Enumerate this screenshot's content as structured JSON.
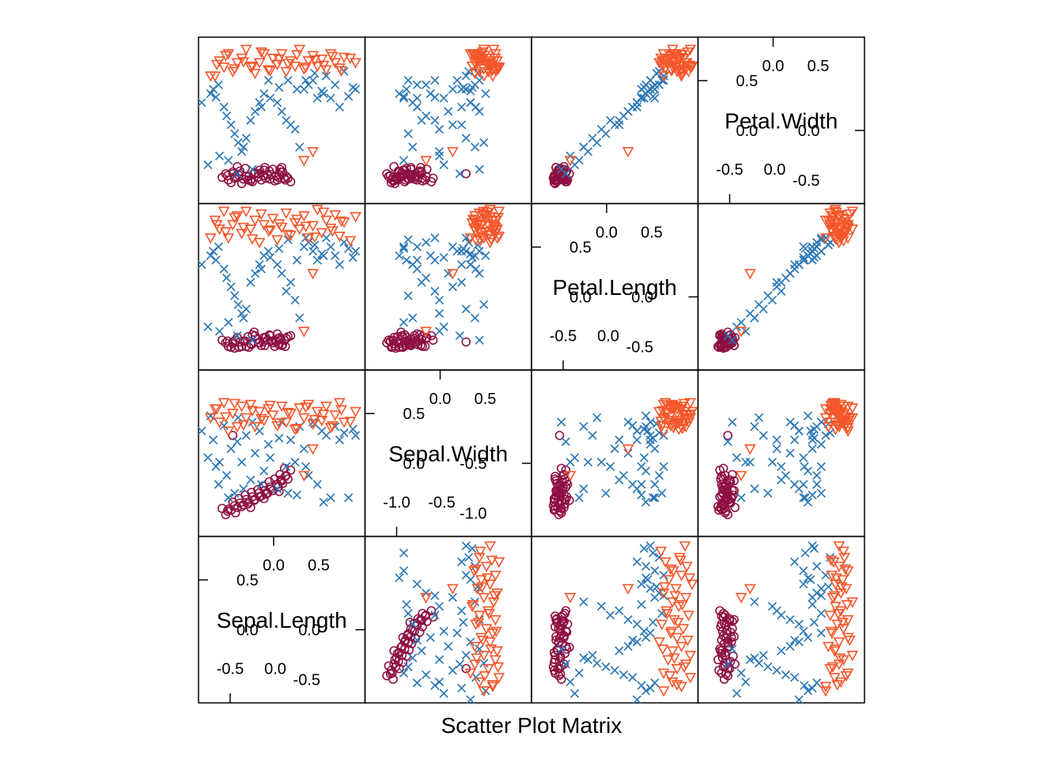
{
  "chart_data": {
    "type": "scatter",
    "title": "",
    "xlabel": "Scatter Plot Matrix",
    "ylabel": "",
    "variables": [
      "Sepal.Length",
      "Sepal.Width",
      "Petal.Length",
      "Petal.Width"
    ],
    "legend": "none",
    "grid": false,
    "panel_range": [
      -0.85,
      0.95
    ],
    "diagonal_ticks": {
      "Sepal.Length": {
        "top": [
          "0.0",
          "0.5"
        ],
        "left": [
          "0.5",
          "0.0"
        ],
        "bottom": [
          "-0.5",
          "0.0"
        ],
        "right": [
          "0.0",
          "-0.5"
        ]
      },
      "Sepal.Width": {
        "top": [
          "0.0",
          "0.5"
        ],
        "left": [
          "0.5",
          "0.0"
        ],
        "bottom": [
          "-1.0",
          "-0.5"
        ],
        "right": [
          "-0.5",
          "-1.0"
        ]
      },
      "Petal.Length": {
        "top": [
          "0.0",
          "0.5"
        ],
        "left": [
          "0.5",
          "0.0"
        ],
        "bottom": [
          "-0.5",
          "0.0"
        ],
        "right": [
          "0.0",
          "-0.5"
        ]
      },
      "Petal.Width": {
        "top": [
          "0.0",
          "0.5"
        ],
        "left": [
          "0.5",
          "0.0"
        ],
        "bottom": [
          "-0.5",
          "0.0"
        ],
        "right": [
          "0.0",
          "-0.5"
        ]
      }
    },
    "series": [
      {
        "marker": "circle",
        "color": "#8E0F42",
        "points": [
          [
            -0.55,
            -0.58,
            -0.62,
            -0.62
          ],
          [
            -0.47,
            -0.62,
            -0.55,
            -0.58
          ],
          [
            -0.4,
            -0.55,
            -0.62,
            -0.66
          ],
          [
            -0.33,
            -0.52,
            -0.51,
            -0.62
          ],
          [
            -0.26,
            -0.48,
            -0.46,
            -0.55
          ],
          [
            -0.2,
            -0.44,
            -0.58,
            -0.51
          ],
          [
            -0.13,
            -0.41,
            -0.52,
            -0.6
          ],
          [
            -0.07,
            -0.35,
            -0.56,
            -0.56
          ],
          [
            0.0,
            -0.3,
            -0.48,
            -0.62
          ],
          [
            0.05,
            -0.26,
            -0.61,
            -0.48
          ],
          [
            0.1,
            -0.2,
            -0.53,
            -0.58
          ],
          [
            0.15,
            -0.14,
            -0.5,
            -0.64
          ],
          [
            -0.5,
            -0.5,
            -0.59,
            -0.53
          ],
          [
            -0.43,
            -0.46,
            -0.63,
            -0.57
          ],
          [
            -0.36,
            -0.42,
            -0.56,
            -0.49
          ],
          [
            -0.29,
            -0.39,
            -0.6,
            -0.61
          ],
          [
            -0.22,
            -0.36,
            -0.54,
            -0.59
          ],
          [
            -0.16,
            -0.32,
            -0.57,
            -0.57
          ],
          [
            -0.09,
            -0.27,
            -0.49,
            -0.52
          ],
          [
            -0.03,
            -0.24,
            -0.62,
            -0.63
          ],
          [
            0.03,
            -0.19,
            -0.52,
            -0.5
          ],
          [
            0.08,
            -0.12,
            -0.55,
            -0.6
          ],
          [
            -0.58,
            -0.64,
            -0.58,
            -0.55
          ],
          [
            -0.52,
            -0.59,
            -0.63,
            -0.65
          ],
          [
            -0.45,
            -0.56,
            -0.52,
            -0.47
          ],
          [
            -0.38,
            -0.53,
            -0.56,
            -0.61
          ],
          [
            -0.32,
            -0.5,
            -0.63,
            -0.58
          ],
          [
            -0.25,
            -0.47,
            -0.5,
            -0.54
          ],
          [
            -0.18,
            -0.43,
            -0.61,
            -0.62
          ],
          [
            -0.11,
            -0.4,
            -0.55,
            -0.56
          ],
          [
            -0.05,
            -0.37,
            -0.58,
            -0.5
          ],
          [
            0.01,
            -0.33,
            -0.53,
            -0.59
          ],
          [
            0.06,
            -0.29,
            -0.6,
            -0.53
          ],
          [
            0.12,
            -0.24,
            -0.51,
            -0.6
          ],
          [
            -0.48,
            -0.54,
            -0.64,
            -0.6
          ],
          [
            -0.42,
            -0.51,
            -0.57,
            -0.52
          ],
          [
            -0.35,
            -0.47,
            -0.62,
            -0.58
          ],
          [
            -0.28,
            -0.44,
            -0.49,
            -0.64
          ],
          [
            -0.21,
            -0.4,
            -0.58,
            -0.55
          ],
          [
            -0.14,
            -0.37,
            -0.61,
            -0.48
          ],
          [
            -0.08,
            -0.33,
            -0.5,
            -0.61
          ],
          [
            -0.01,
            -0.3,
            -0.57,
            -0.57
          ],
          [
            0.04,
            -0.25,
            -0.54,
            -0.53
          ],
          [
            0.09,
            -0.21,
            -0.62,
            -0.62
          ],
          [
            -0.56,
            -0.6,
            -0.56,
            -0.57
          ],
          [
            -0.3,
            -0.56,
            -0.59,
            -0.63
          ],
          [
            -0.15,
            -0.46,
            -0.52,
            -0.51
          ],
          [
            0.02,
            -0.38,
            -0.6,
            -0.56
          ],
          [
            -0.62,
            -0.57,
            -0.55,
            -0.59
          ],
          [
            -0.5,
            0.25,
            -0.57,
            -0.55
          ]
        ]
      },
      {
        "marker": "x",
        "color": "#2E78B5",
        "points": [
          [
            -0.75,
            0.47,
            0.4,
            0.35
          ],
          [
            -0.72,
            0.2,
            0.45,
            0.4
          ],
          [
            -0.69,
            -0.1,
            0.35,
            0.31
          ],
          [
            -0.66,
            -0.3,
            0.5,
            0.45
          ],
          [
            -0.6,
            0.36,
            0.25,
            0.2
          ],
          [
            -0.57,
            -0.2,
            0.15,
            0.1
          ],
          [
            -0.52,
            0.1,
            0.05,
            0.0
          ],
          [
            -0.48,
            -0.4,
            -0.05,
            -0.1
          ],
          [
            -0.44,
            0.45,
            -0.15,
            -0.2
          ],
          [
            -0.4,
            -0.05,
            -0.25,
            -0.3
          ],
          [
            -0.35,
            0.25,
            -0.2,
            -0.15
          ],
          [
            -0.3,
            -0.25,
            0.1,
            0.05
          ],
          [
            -0.25,
            0.05,
            0.2,
            0.15
          ],
          [
            -0.2,
            0.3,
            0.3,
            0.25
          ],
          [
            -0.15,
            -0.15,
            0.4,
            0.35
          ],
          [
            -0.1,
            0.15,
            0.45,
            0.5
          ],
          [
            0.0,
            -0.35,
            0.3,
            0.25
          ],
          [
            0.05,
            0.4,
            0.2,
            0.15
          ],
          [
            0.1,
            -0.1,
            0.0,
            0.05
          ],
          [
            0.15,
            0.2,
            0.1,
            0.0
          ],
          [
            0.2,
            -0.05,
            -0.1,
            -0.05
          ],
          [
            0.25,
            0.35,
            -0.3,
            -0.25
          ],
          [
            0.3,
            0.1,
            0.5,
            0.4
          ],
          [
            0.35,
            -0.2,
            0.55,
            0.45
          ],
          [
            0.4,
            0.4,
            0.45,
            0.5
          ],
          [
            0.45,
            -0.3,
            0.35,
            0.3
          ],
          [
            0.5,
            0.3,
            0.42,
            0.38
          ],
          [
            0.55,
            0.25,
            0.6,
            0.55
          ],
          [
            0.6,
            -0.45,
            0.5,
            0.3
          ],
          [
            0.65,
            0.35,
            0.4,
            0.45
          ],
          [
            0.7,
            0.2,
            0.3,
            0.2
          ],
          [
            0.75,
            0.28,
            0.55,
            0.6
          ],
          [
            0.8,
            -0.45,
            0.48,
            0.32
          ],
          [
            0.85,
            0.32,
            0.38,
            0.42
          ],
          [
            0.88,
            0.25,
            0.45,
            0.4
          ],
          [
            -0.78,
            0.0,
            -0.4,
            -0.45
          ],
          [
            -0.65,
            -0.05,
            -0.45,
            -0.35
          ],
          [
            -0.55,
            -0.45,
            -0.35,
            -0.4
          ],
          [
            -0.45,
            0.18,
            -0.5,
            -0.55
          ],
          [
            -0.38,
            -0.35,
            -0.3,
            -0.25
          ],
          [
            -0.28,
            0.4,
            -0.55,
            -0.5
          ],
          [
            -0.18,
            -0.3,
            0.25,
            0.2
          ],
          [
            -0.08,
            0.0,
            0.38,
            0.3
          ],
          [
            0.02,
            0.22,
            0.48,
            0.42
          ],
          [
            0.12,
            -0.4,
            0.58,
            0.5
          ],
          [
            0.22,
            -0.42,
            0.35,
            0.4
          ],
          [
            0.32,
            -0.1,
            0.6,
            0.5
          ],
          [
            0.42,
            0.38,
            0.52,
            0.58
          ],
          [
            0.52,
            -0.5,
            0.4,
            0.35
          ],
          [
            -0.85,
            0.3,
            0.3,
            0.25
          ]
        ]
      },
      {
        "marker": "triangle",
        "color": "#F4572B",
        "points": [
          [
            -0.7,
            0.55,
            0.8,
            0.55
          ],
          [
            -0.65,
            0.4,
            0.7,
            0.72
          ],
          [
            -0.6,
            0.62,
            0.9,
            0.65
          ],
          [
            -0.55,
            0.3,
            0.6,
            0.8
          ],
          [
            -0.5,
            0.5,
            0.75,
            0.6
          ],
          [
            -0.45,
            0.35,
            0.85,
            0.7
          ],
          [
            -0.4,
            0.58,
            0.65,
            0.75
          ],
          [
            -0.35,
            0.45,
            0.9,
            0.85
          ],
          [
            -0.3,
            0.6,
            0.7,
            0.65
          ],
          [
            -0.25,
            0.35,
            0.8,
            0.58
          ],
          [
            -0.2,
            0.52,
            0.55,
            0.7
          ],
          [
            -0.15,
            0.42,
            0.75,
            0.8
          ],
          [
            -0.1,
            0.55,
            0.68,
            0.62
          ],
          [
            -0.05,
            0.48,
            0.82,
            0.75
          ],
          [
            0.0,
            0.36,
            0.58,
            0.68
          ],
          [
            0.05,
            0.58,
            0.72,
            0.8
          ],
          [
            0.1,
            0.4,
            0.88,
            0.6
          ],
          [
            0.15,
            0.5,
            0.63,
            0.72
          ],
          [
            0.2,
            0.32,
            0.77,
            0.66
          ],
          [
            0.25,
            0.56,
            0.7,
            0.85
          ],
          [
            0.3,
            0.45,
            0.85,
            0.63
          ],
          [
            0.35,
            0.6,
            0.6,
            0.72
          ],
          [
            0.4,
            0.38,
            0.74,
            0.78
          ],
          [
            0.45,
            0.52,
            0.92,
            0.66
          ],
          [
            0.5,
            0.42,
            0.66,
            0.74
          ],
          [
            0.55,
            0.58,
            0.8,
            0.62
          ],
          [
            0.6,
            0.34,
            0.71,
            0.8
          ],
          [
            0.65,
            0.48,
            0.86,
            0.7
          ],
          [
            0.7,
            0.62,
            0.62,
            0.64
          ],
          [
            0.75,
            0.4,
            0.78,
            0.76
          ],
          [
            -0.68,
            0.55,
            0.75,
            0.68
          ],
          [
            -0.58,
            0.46,
            0.67,
            0.78
          ],
          [
            -0.48,
            0.61,
            0.83,
            0.63
          ],
          [
            -0.38,
            0.37,
            0.72,
            0.71
          ],
          [
            -0.28,
            0.53,
            0.59,
            0.66
          ],
          [
            -0.18,
            0.44,
            0.87,
            0.82
          ],
          [
            -0.08,
            0.59,
            0.69,
            0.61
          ],
          [
            0.02,
            0.39,
            0.76,
            0.74
          ],
          [
            0.12,
            0.51,
            0.64,
            0.69
          ],
          [
            0.22,
            0.33,
            0.81,
            0.79
          ],
          [
            0.32,
            0.57,
            0.73,
            0.65
          ],
          [
            0.42,
            0.43,
            0.61,
            0.73
          ],
          [
            0.52,
            0.49,
            0.89,
            0.67
          ],
          [
            0.62,
            0.36,
            0.68,
            0.77
          ],
          [
            0.72,
            0.54,
            0.79,
            0.61
          ],
          [
            0.82,
            0.41,
            0.57,
            0.75
          ],
          [
            0.88,
            0.52,
            0.84,
            0.7
          ],
          [
            -0.75,
            0.45,
            0.6,
            0.55
          ],
          [
            0.3,
            -0.2,
            -0.45,
            -0.4
          ],
          [
            0.4,
            0.1,
            0.2,
            -0.3
          ]
        ]
      }
    ]
  }
}
